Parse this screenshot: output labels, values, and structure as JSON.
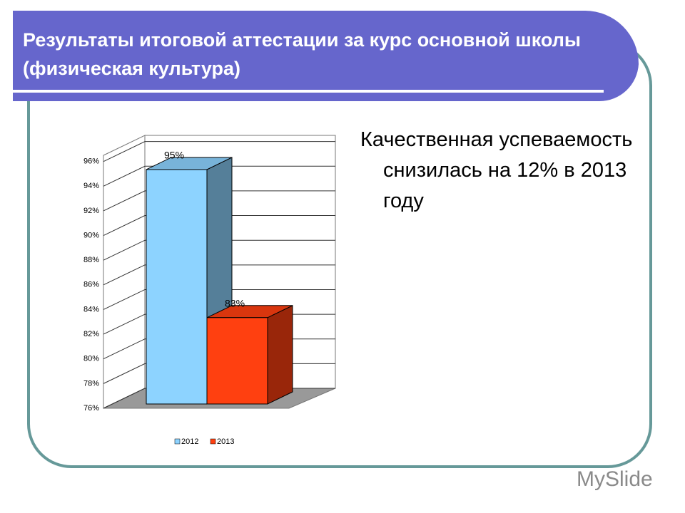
{
  "slide": {
    "title": "Результаты итоговой аттестации за курс основной школы (физическая культура)",
    "text": "Качественная успеваемость снизилась на 12% в 2013 году",
    "watermark": "MySlide"
  },
  "chart_data": {
    "type": "bar3d",
    "categories": [
      null
    ],
    "series": [
      {
        "name": "2012",
        "color": "#8dd3ff",
        "values": [
          95
        ],
        "value_labels": [
          "95%"
        ]
      },
      {
        "name": "2013",
        "color": "#ff4010",
        "values": [
          83
        ],
        "value_labels": [
          "83%"
        ]
      }
    ],
    "ylim": [
      76,
      96.5
    ],
    "yticks": [
      {
        "value": 76,
        "label": "76%"
      },
      {
        "value": 78,
        "label": "78%"
      },
      {
        "value": 80,
        "label": "80%"
      },
      {
        "value": 82,
        "label": "82%"
      },
      {
        "value": 84,
        "label": "84%"
      },
      {
        "value": 86,
        "label": "86%"
      },
      {
        "value": 88,
        "label": "88%"
      },
      {
        "value": 90,
        "label": "90%"
      },
      {
        "value": 92,
        "label": "92%"
      },
      {
        "value": 94,
        "label": "94%"
      },
      {
        "value": 96,
        "label": "96%"
      }
    ],
    "grid": true,
    "legend": "bottom"
  }
}
